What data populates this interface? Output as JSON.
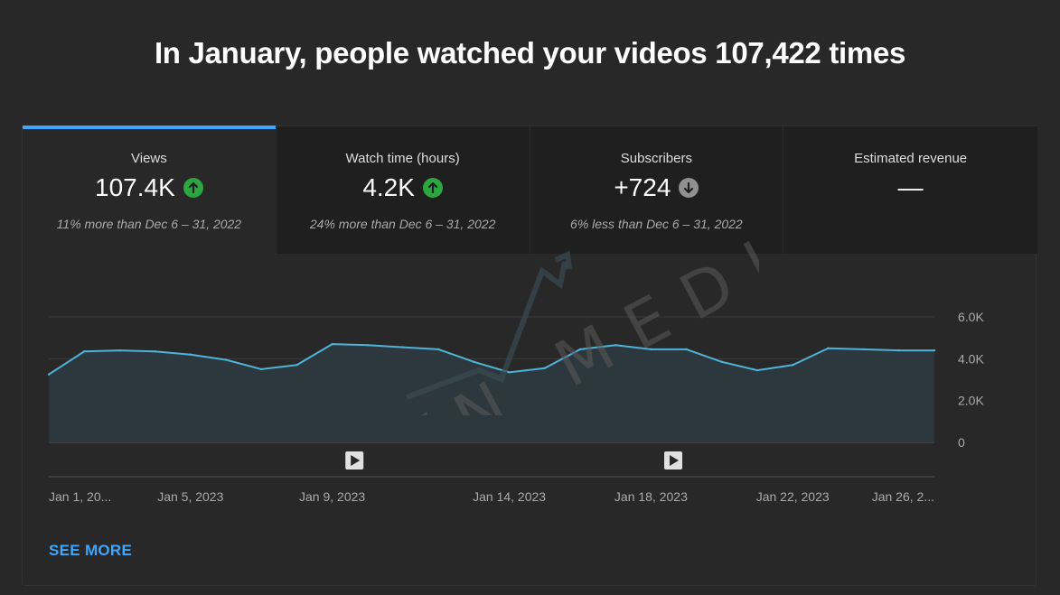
{
  "headline": "In January, people watched your videos 107,422 times",
  "tabs": [
    {
      "label": "Views",
      "value": "107.4K",
      "trend": "up",
      "compare": "11% more than Dec 6 – 31, 2022"
    },
    {
      "label": "Watch time (hours)",
      "value": "4.2K",
      "trend": "up",
      "compare": "24% more than Dec 6 – 31, 2022"
    },
    {
      "label": "Subscribers",
      "value": "+724",
      "trend": "down",
      "compare": "6% less than Dec 6 – 31, 2022"
    },
    {
      "label": "Estimated revenue",
      "value": "—",
      "trend": "",
      "compare": ""
    }
  ],
  "see_more": "SEE MORE",
  "watermark": "WYN MEDIA",
  "colors": {
    "accent": "#3ea6ff",
    "line": "#4fb3d9",
    "area": "#2d3a40",
    "trend_up": "#2ba640",
    "trend_down": "#909090"
  },
  "chart_data": {
    "type": "area",
    "series": [
      {
        "values": [
          3250,
          4350,
          4400,
          4350,
          4200,
          3950,
          3500,
          3700,
          4700,
          4650,
          4550,
          4450,
          3850,
          3350,
          3550,
          4450,
          4650,
          4450,
          4450,
          3850,
          3450,
          3700,
          4500,
          4450,
          4400,
          4400
        ]
      }
    ],
    "x_tick_labels": [
      "Jan 1, 20...",
      "Jan 5, 2023",
      "Jan 9, 2023",
      "Jan 14, 2023",
      "Jan 18, 2023",
      "Jan 22, 2023",
      "Jan 26, 2..."
    ],
    "x_tick_index": [
      0,
      4,
      8,
      13,
      17,
      21,
      25
    ],
    "y_ticks": [
      0,
      2000,
      4000,
      6000
    ],
    "y_tick_labels": [
      "0",
      "2.0K",
      "4.0K",
      "6.0K"
    ],
    "ylim": [
      0,
      6000
    ],
    "grid": true,
    "markers_index": [
      9,
      18
    ]
  }
}
